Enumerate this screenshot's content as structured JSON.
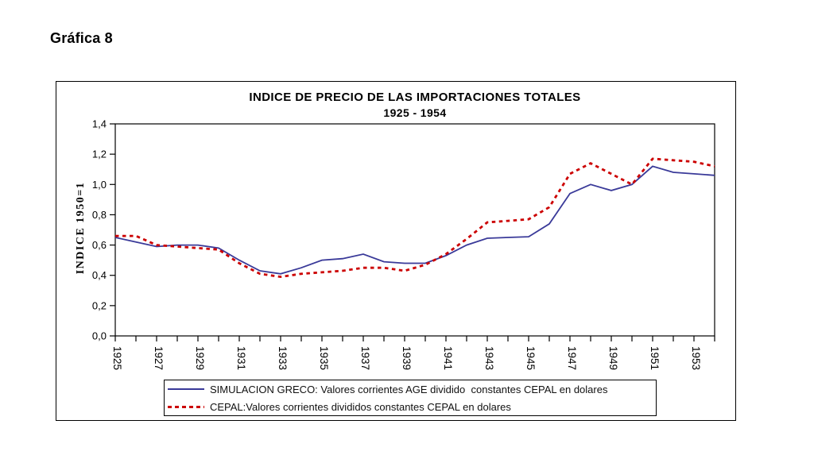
{
  "figure_label": "Gráfica 8",
  "chart": {
    "title": "INDICE DE PRECIO DE LAS IMPORTACIONES TOTALES",
    "subtitle": "1925 - 1954",
    "y_axis_title": "INDICE 1950=1"
  },
  "legend": {
    "items": [
      {
        "label": "SIMULACION GRECO: Valores corrientes AGE dividido  constantes CEPAL en dolares",
        "color": "#3A3A99",
        "line_style": "solid"
      },
      {
        "label": "CEPAL:Valores corrientes divididos constantes CEPAL en dolares",
        "color": "#CC0000",
        "line_style": "dotted"
      }
    ]
  },
  "chart_data": {
    "type": "line",
    "title": "INDICE DE PRECIO DE LAS IMPORTACIONES TOTALES",
    "subtitle": "1925 - 1954",
    "xlabel": "",
    "ylabel": "INDICE 1950=1",
    "ylim": [
      0,
      1.4
    ],
    "y_ticks": [
      0.0,
      0.2,
      0.4,
      0.6,
      0.8,
      1.0,
      1.2,
      1.4
    ],
    "y_tick_labels": [
      "0,0",
      "0,2",
      "0,4",
      "0,6",
      "0,8",
      "1,0",
      "1,2",
      "1,4"
    ],
    "grid": false,
    "legend_position": "bottom",
    "x": [
      1925,
      1926,
      1927,
      1928,
      1929,
      1930,
      1931,
      1932,
      1933,
      1934,
      1935,
      1936,
      1937,
      1938,
      1939,
      1940,
      1941,
      1942,
      1943,
      1944,
      1945,
      1946,
      1947,
      1948,
      1949,
      1950,
      1951,
      1952,
      1953,
      1954
    ],
    "x_tick_labels": [
      1925,
      1927,
      1929,
      1931,
      1933,
      1935,
      1937,
      1939,
      1941,
      1943,
      1945,
      1947,
      1949,
      1951,
      1953
    ],
    "series": [
      {
        "name": "SIMULACION GRECO: Valores corrientes AGE dividido  constantes CEPAL en dolares",
        "color": "#3A3A99",
        "line_style": "solid",
        "values": [
          0.65,
          0.62,
          0.59,
          0.6,
          0.6,
          0.58,
          0.5,
          0.43,
          0.41,
          0.45,
          0.5,
          0.51,
          0.54,
          0.49,
          0.48,
          0.48,
          0.53,
          0.6,
          0.645,
          0.65,
          0.655,
          0.74,
          0.94,
          1.0,
          0.96,
          1.0,
          1.12,
          1.08,
          1.07,
          1.06
        ]
      },
      {
        "name": "CEPAL:Valores corrientes divididos constantes CEPAL en dolares",
        "color": "#CC0000",
        "line_style": "dotted",
        "values": [
          0.66,
          0.66,
          0.6,
          0.59,
          0.58,
          0.57,
          0.48,
          0.41,
          0.39,
          0.41,
          0.42,
          0.43,
          0.45,
          0.45,
          0.43,
          0.47,
          0.54,
          0.64,
          0.75,
          0.76,
          0.77,
          0.85,
          1.07,
          1.14,
          1.07,
          1.0,
          1.17,
          1.16,
          1.15,
          1.12
        ]
      }
    ]
  }
}
